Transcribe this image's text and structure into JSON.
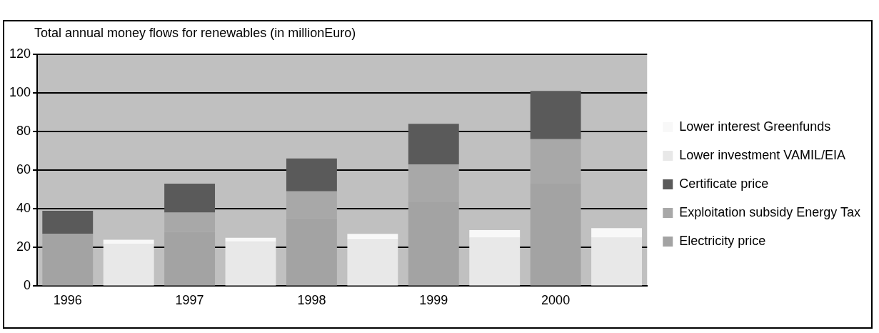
{
  "chart_data": {
    "type": "bar",
    "title": "Total annual money flows for renewables (in millionEuro)",
    "categories": [
      "1996",
      null,
      "1997",
      null,
      "1998",
      null,
      "1999",
      null,
      "2000",
      null
    ],
    "stacked": true,
    "series": [
      {
        "name": "Electricity price",
        "color": "#a3a3a3",
        "values": [
          27,
          null,
          28,
          null,
          35,
          null,
          44,
          null,
          53,
          null
        ]
      },
      {
        "name": "Exploitation subsidy Energy Tax",
        "color": "#a8a8a8",
        "values": [
          0,
          null,
          10,
          null,
          14,
          null,
          19,
          null,
          23,
          null
        ]
      },
      {
        "name": "Certificate price",
        "color": "#5a5a5a",
        "values": [
          12,
          null,
          15,
          null,
          17,
          null,
          21,
          null,
          25,
          null
        ]
      },
      {
        "name": "Lower investment VAMIL/EIA",
        "color": "#e8e8e8",
        "values": [
          null,
          22,
          null,
          23,
          null,
          24,
          null,
          25,
          null,
          25
        ]
      },
      {
        "name": "Lower interest Greenfunds",
        "color": "#f8f8f8",
        "values": [
          null,
          2,
          null,
          2,
          null,
          3,
          null,
          4,
          null,
          5
        ]
      }
    ],
    "ylim": [
      0,
      120
    ],
    "yticks": [
      0,
      20,
      40,
      60,
      80,
      100,
      120
    ],
    "grid": "y",
    "legend": "right"
  }
}
